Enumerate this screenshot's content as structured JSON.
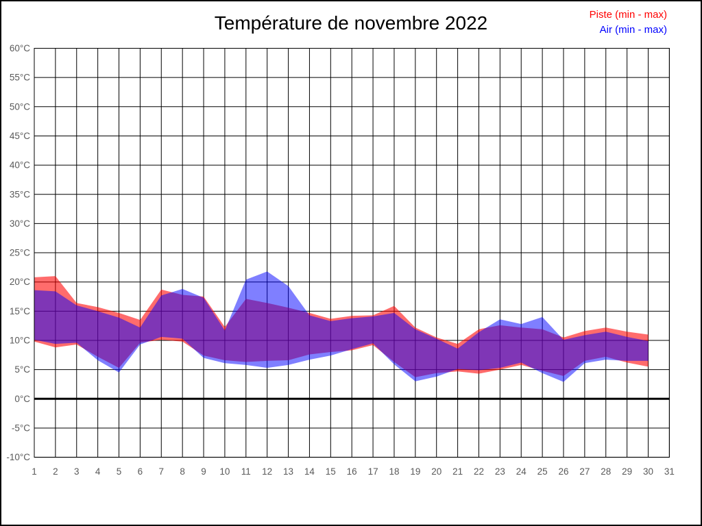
{
  "header": {
    "title": "Température de novembre 2022",
    "legend": [
      {
        "label": "Piste (min - max)",
        "color": "#ff0000"
      },
      {
        "label": "Air (min - max)",
        "color": "#0000ff"
      }
    ]
  },
  "chart_data": {
    "type": "area",
    "title": "Température de novembre 2022",
    "xlabel": "",
    "ylabel": "",
    "unit": "°C",
    "xlim": [
      1,
      31
    ],
    "ylim": [
      -10,
      60
    ],
    "ytick_step": 5,
    "xticks": [
      1,
      2,
      3,
      4,
      5,
      6,
      7,
      8,
      9,
      10,
      11,
      12,
      13,
      14,
      15,
      16,
      17,
      18,
      19,
      20,
      21,
      22,
      23,
      24,
      25,
      26,
      27,
      28,
      29,
      30,
      31
    ],
    "yticks": [
      60,
      55,
      50,
      45,
      40,
      35,
      30,
      25,
      20,
      15,
      10,
      5,
      0,
      -5,
      -10
    ],
    "grid": true,
    "zero_line_bold": true,
    "legend_position": "top-right",
    "x": [
      1,
      2,
      3,
      4,
      5,
      6,
      7,
      8,
      9,
      10,
      11,
      12,
      13,
      14,
      15,
      16,
      17,
      18,
      19,
      20,
      21,
      22,
      23,
      24,
      25,
      26,
      27,
      28,
      29,
      30
    ],
    "series": [
      {
        "name": "Piste (min - max)",
        "band": true,
        "color": "#ff0000",
        "fill_opacity": 0.575,
        "max": [
          20.8,
          21.0,
          16.4,
          15.7,
          14.7,
          13.5,
          18.7,
          17.8,
          17.5,
          12.3,
          17.1,
          16.4,
          15.6,
          14.7,
          13.7,
          14.2,
          14.3,
          15.9,
          12.2,
          10.5,
          9.4,
          11.9,
          12.6,
          12.2,
          11.9,
          10.5,
          11.6,
          12.2,
          11.5,
          11.0
        ],
        "min": [
          9.8,
          8.8,
          9.3,
          7.2,
          5.3,
          9.6,
          10.1,
          9.8,
          7.4,
          6.6,
          6.3,
          6.5,
          6.6,
          7.6,
          8.0,
          8.3,
          9.2,
          6.3,
          3.7,
          4.4,
          4.7,
          4.3,
          5.0,
          5.8,
          4.8,
          3.9,
          6.5,
          7.2,
          6.2,
          5.5
        ]
      },
      {
        "name": "Air (min - max)",
        "band": true,
        "color": "#0000ff",
        "fill_opacity": 0.5,
        "max": [
          18.6,
          18.4,
          16.0,
          15.0,
          13.9,
          12.2,
          17.7,
          18.8,
          17.3,
          11.7,
          20.4,
          21.8,
          19.3,
          14.3,
          13.3,
          13.8,
          14.1,
          14.7,
          11.9,
          10.3,
          8.6,
          11.4,
          13.6,
          12.8,
          14.0,
          10.1,
          10.9,
          11.5,
          10.6,
          9.9
        ],
        "min": [
          10.1,
          9.4,
          9.6,
          6.6,
          4.5,
          9.3,
          10.6,
          10.3,
          7.0,
          6.1,
          5.8,
          5.3,
          5.8,
          6.7,
          7.4,
          8.5,
          9.5,
          5.9,
          3.0,
          3.8,
          5.1,
          4.9,
          5.3,
          6.2,
          4.4,
          2.9,
          6.1,
          6.7,
          6.5,
          6.5
        ]
      }
    ]
  },
  "colors": {
    "grid": "#000000",
    "tick_text": "#595959",
    "title_text": "#000000",
    "background": "#ffffff"
  }
}
